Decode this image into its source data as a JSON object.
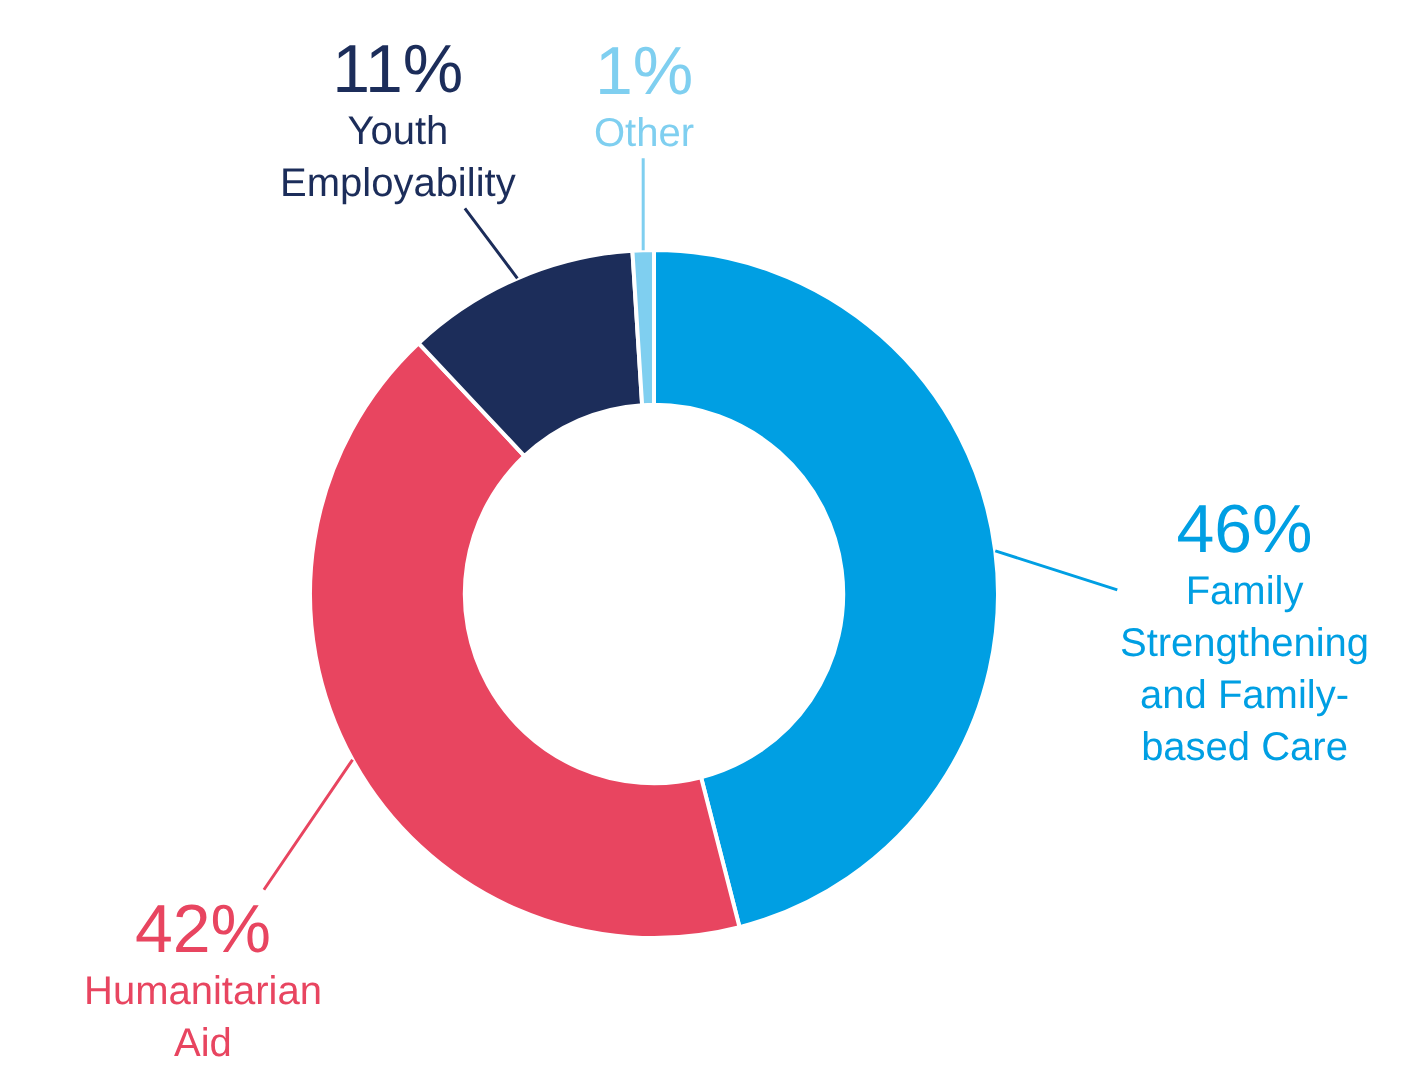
{
  "chart_data": {
    "type": "donut",
    "categories": [
      "Family Strengthening and Family-based Care",
      "Humanitarian Aid",
      "Youth Employability",
      "Other"
    ],
    "values": [
      46,
      42,
      11,
      1
    ],
    "colors": [
      "#009fe3",
      "#e84560",
      "#1c2d5a",
      "#7fcff0"
    ],
    "value_labels": [
      "46%",
      "42%",
      "11%",
      "1%"
    ],
    "legend": false
  }
}
